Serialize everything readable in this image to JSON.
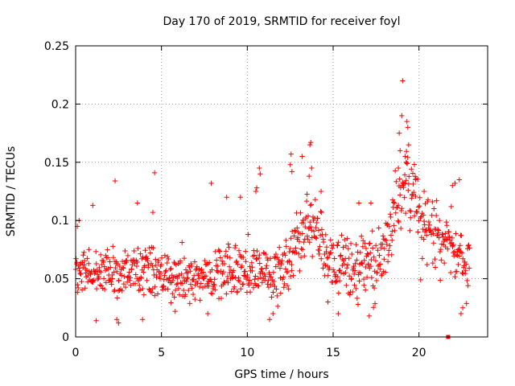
{
  "chart_data": {
    "type": "scatter",
    "title": "Day 170 of 2019, SRMTID for receiver foyl",
    "xlabel": "GPS time / hours",
    "ylabel": "SRMTID / TECUs",
    "xlim": [
      0,
      24
    ],
    "ylim": [
      0,
      0.25
    ],
    "x_ticks": [
      0,
      5,
      10,
      15,
      20
    ],
    "y_ticks": [
      0,
      0.05,
      0.1,
      0.15,
      0.2,
      0.25
    ],
    "x_tick_labels": [
      "0",
      "5",
      "10",
      "15",
      "20"
    ],
    "y_tick_labels": [
      "0",
      "0.05",
      "0.1",
      "0.15",
      "0.2",
      "0.25"
    ],
    "grid": true,
    "marker": "plus",
    "color": "#ff0000",
    "time_step_hours": 0.025,
    "x_start": 0.0,
    "x_end": 22.95,
    "trend": [
      {
        "x": 0,
        "y": 0.055
      },
      {
        "x": 1,
        "y": 0.056
      },
      {
        "x": 2,
        "y": 0.055
      },
      {
        "x": 3,
        "y": 0.054
      },
      {
        "x": 4,
        "y": 0.057
      },
      {
        "x": 5,
        "y": 0.052
      },
      {
        "x": 6,
        "y": 0.05
      },
      {
        "x": 7,
        "y": 0.05
      },
      {
        "x": 8,
        "y": 0.055
      },
      {
        "x": 9,
        "y": 0.057
      },
      {
        "x": 10,
        "y": 0.056
      },
      {
        "x": 11,
        "y": 0.058
      },
      {
        "x": 12,
        "y": 0.055
      },
      {
        "x": 13,
        "y": 0.08
      },
      {
        "x": 13.7,
        "y": 0.095
      },
      {
        "x": 14.5,
        "y": 0.075
      },
      {
        "x": 15,
        "y": 0.065
      },
      {
        "x": 16,
        "y": 0.058
      },
      {
        "x": 17,
        "y": 0.058
      },
      {
        "x": 18,
        "y": 0.07
      },
      {
        "x": 18.6,
        "y": 0.11
      },
      {
        "x": 19.2,
        "y": 0.13
      },
      {
        "x": 19.8,
        "y": 0.12
      },
      {
        "x": 20.3,
        "y": 0.09
      },
      {
        "x": 21,
        "y": 0.085
      },
      {
        "x": 22,
        "y": 0.075
      },
      {
        "x": 22.95,
        "y": 0.06
      }
    ],
    "spread": [
      {
        "x": 0,
        "s": 0.014
      },
      {
        "x": 12,
        "s": 0.016
      },
      {
        "x": 13,
        "s": 0.022
      },
      {
        "x": 15,
        "s": 0.017
      },
      {
        "x": 18,
        "s": 0.02
      },
      {
        "x": 19,
        "s": 0.028
      },
      {
        "x": 21,
        "s": 0.02
      },
      {
        "x": 22.95,
        "s": 0.017
      }
    ],
    "highlights": [
      {
        "x": 19.05,
        "y": 0.22
      },
      {
        "x": 19.0,
        "y": 0.19
      },
      {
        "x": 19.3,
        "y": 0.185
      },
      {
        "x": 19.35,
        "y": 0.18
      },
      {
        "x": 19.4,
        "y": 0.165
      },
      {
        "x": 18.85,
        "y": 0.175
      },
      {
        "x": 18.9,
        "y": 0.16
      },
      {
        "x": 19.2,
        "y": 0.155
      },
      {
        "x": 19.25,
        "y": 0.15
      },
      {
        "x": 18.8,
        "y": 0.145
      },
      {
        "x": 13.7,
        "y": 0.167
      },
      {
        "x": 13.65,
        "y": 0.165
      },
      {
        "x": 12.55,
        "y": 0.157
      },
      {
        "x": 12.5,
        "y": 0.148
      },
      {
        "x": 12.6,
        "y": 0.142
      },
      {
        "x": 13.2,
        "y": 0.155
      },
      {
        "x": 13.75,
        "y": 0.145
      },
      {
        "x": 13.6,
        "y": 0.138
      },
      {
        "x": 10.7,
        "y": 0.145
      },
      {
        "x": 10.75,
        "y": 0.14
      },
      {
        "x": 4.6,
        "y": 0.141
      },
      {
        "x": 2.3,
        "y": 0.134
      },
      {
        "x": 7.9,
        "y": 0.132
      },
      {
        "x": 10.55,
        "y": 0.128
      },
      {
        "x": 10.5,
        "y": 0.125
      },
      {
        "x": 22.35,
        "y": 0.135
      },
      {
        "x": 22.1,
        "y": 0.132
      },
      {
        "x": 21.95,
        "y": 0.13
      },
      {
        "x": 19.8,
        "y": 0.135
      },
      {
        "x": 20.3,
        "y": 0.125
      },
      {
        "x": 14.3,
        "y": 0.125
      },
      {
        "x": 16.5,
        "y": 0.115
      },
      {
        "x": 17.2,
        "y": 0.115
      },
      {
        "x": 8.8,
        "y": 0.12
      },
      {
        "x": 9.6,
        "y": 0.12
      },
      {
        "x": 3.6,
        "y": 0.115
      },
      {
        "x": 1.0,
        "y": 0.113
      },
      {
        "x": 4.5,
        "y": 0.107
      },
      {
        "x": 0.2,
        "y": 0.1
      },
      {
        "x": 0.1,
        "y": 0.095
      },
      {
        "x": 2.5,
        "y": 0.012
      },
      {
        "x": 2.4,
        "y": 0.015
      },
      {
        "x": 1.2,
        "y": 0.014
      },
      {
        "x": 11.3,
        "y": 0.015
      },
      {
        "x": 11.5,
        "y": 0.02
      },
      {
        "x": 14.7,
        "y": 0.03
      },
      {
        "x": 15.3,
        "y": 0.02
      },
      {
        "x": 17.1,
        "y": 0.018
      },
      {
        "x": 22.45,
        "y": 0.02
      },
      {
        "x": 22.55,
        "y": 0.025
      },
      {
        "x": 7.7,
        "y": 0.02
      },
      {
        "x": 3.9,
        "y": 0.015
      },
      {
        "x": 5.8,
        "y": 0.022
      }
    ],
    "outlier_markers": [
      {
        "x": 21.7,
        "y": 0.0,
        "marker": "square"
      }
    ]
  }
}
